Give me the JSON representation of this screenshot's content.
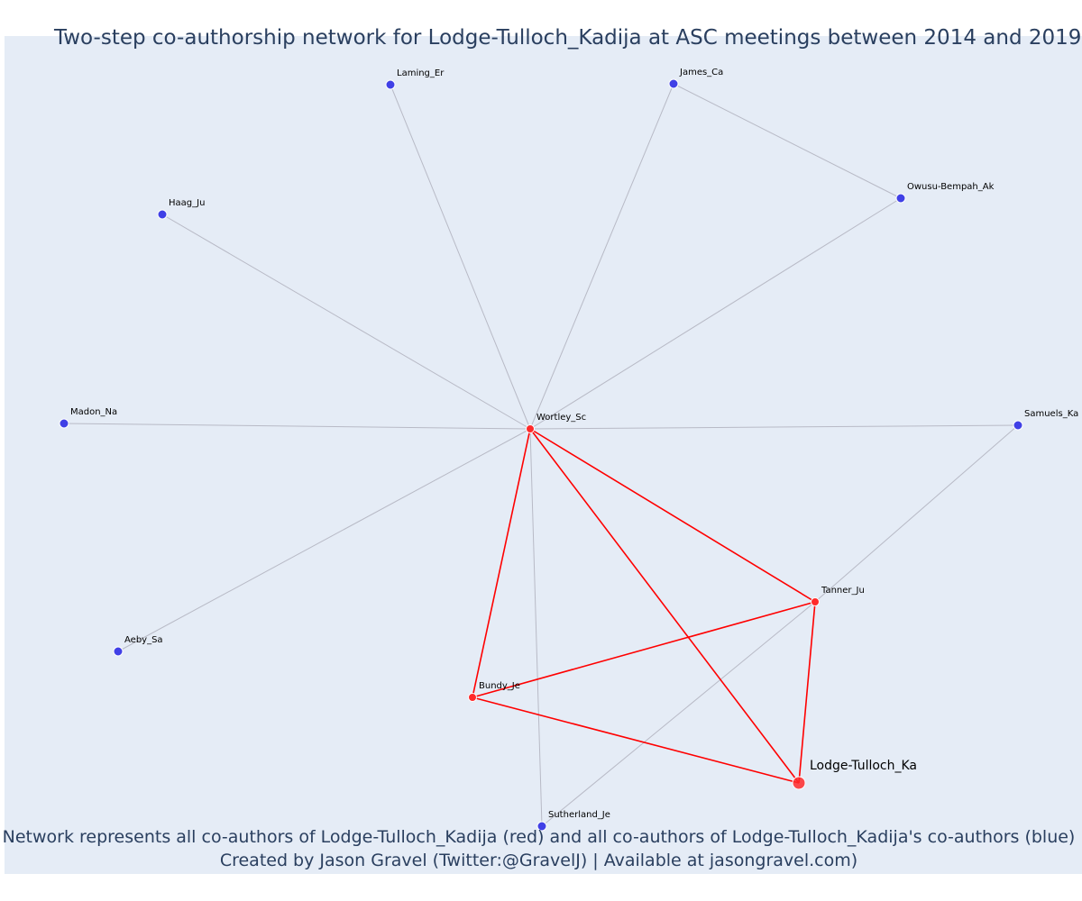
{
  "title": "Two-step co-authorship network for Lodge-Tulloch_Kadija at ASC meetings between 2014 and 2019",
  "caption_line1": "Network represents all co-authors of Lodge-Tulloch_Kadija (red) and all co-authors of Lodge-Tulloch_Kadija's co-authors (blue)",
  "caption_line2": "Created by Jason Gravel (Twitter:@GravelJ) | Available at jasongravel.com)",
  "colors": {
    "background": "#e5ecf6",
    "direct_node": "#ff2a2a",
    "indirect_node": "#4040e6",
    "direct_edge": "#ff0000",
    "indirect_edge": "#b8bac6"
  },
  "nodes": [
    {
      "id": "Laming_Er",
      "label": "Laming_Er",
      "group": "indirect"
    },
    {
      "id": "James_Ca",
      "label": "James_Ca",
      "group": "indirect"
    },
    {
      "id": "Owusu-Bempah_Ak",
      "label": "Owusu-Bempah_Ak",
      "group": "indirect"
    },
    {
      "id": "Haag_Ju",
      "label": "Haag_Ju",
      "group": "indirect"
    },
    {
      "id": "Madon_Na",
      "label": "Madon_Na",
      "group": "indirect"
    },
    {
      "id": "Wortley_Sc",
      "label": "Wortley_Sc",
      "group": "direct"
    },
    {
      "id": "Samuels_Ka",
      "label": "Samuels_Ka",
      "group": "indirect"
    },
    {
      "id": "Tanner_Ju",
      "label": "Tanner_Ju",
      "group": "direct"
    },
    {
      "id": "Aeby_Sa",
      "label": "Aeby_Sa",
      "group": "indirect"
    },
    {
      "id": "Bundy_Je",
      "label": "Bundy_Je",
      "group": "direct"
    },
    {
      "id": "Lodge-Tulloch_Ka",
      "label": "Lodge-Tulloch_Ka",
      "group": "focal"
    },
    {
      "id": "Sutherland_Je",
      "label": "Sutherland_Je",
      "group": "indirect"
    }
  ],
  "edges": [
    {
      "source": "Wortley_Sc",
      "target": "Laming_Er",
      "group": "indirect"
    },
    {
      "source": "Wortley_Sc",
      "target": "James_Ca",
      "group": "indirect"
    },
    {
      "source": "James_Ca",
      "target": "Owusu-Bempah_Ak",
      "group": "indirect"
    },
    {
      "source": "Wortley_Sc",
      "target": "Owusu-Bempah_Ak",
      "group": "indirect"
    },
    {
      "source": "Wortley_Sc",
      "target": "Haag_Ju",
      "group": "indirect"
    },
    {
      "source": "Wortley_Sc",
      "target": "Madon_Na",
      "group": "indirect"
    },
    {
      "source": "Wortley_Sc",
      "target": "Samuels_Ka",
      "group": "indirect"
    },
    {
      "source": "Wortley_Sc",
      "target": "Aeby_Sa",
      "group": "indirect"
    },
    {
      "source": "Wortley_Sc",
      "target": "Sutherland_Je",
      "group": "indirect"
    },
    {
      "source": "Tanner_Ju",
      "target": "Samuels_Ka",
      "group": "indirect"
    },
    {
      "source": "Tanner_Ju",
      "target": "Sutherland_Je",
      "group": "indirect"
    },
    {
      "source": "Wortley_Sc",
      "target": "Bundy_Je",
      "group": "direct"
    },
    {
      "source": "Wortley_Sc",
      "target": "Tanner_Ju",
      "group": "direct"
    },
    {
      "source": "Wortley_Sc",
      "target": "Lodge-Tulloch_Ka",
      "group": "direct"
    },
    {
      "source": "Bundy_Je",
      "target": "Tanner_Ju",
      "group": "direct"
    },
    {
      "source": "Bundy_Je",
      "target": "Lodge-Tulloch_Ka",
      "group": "direct"
    },
    {
      "source": "Tanner_Ju",
      "target": "Lodge-Tulloch_Ka",
      "group": "direct"
    }
  ]
}
